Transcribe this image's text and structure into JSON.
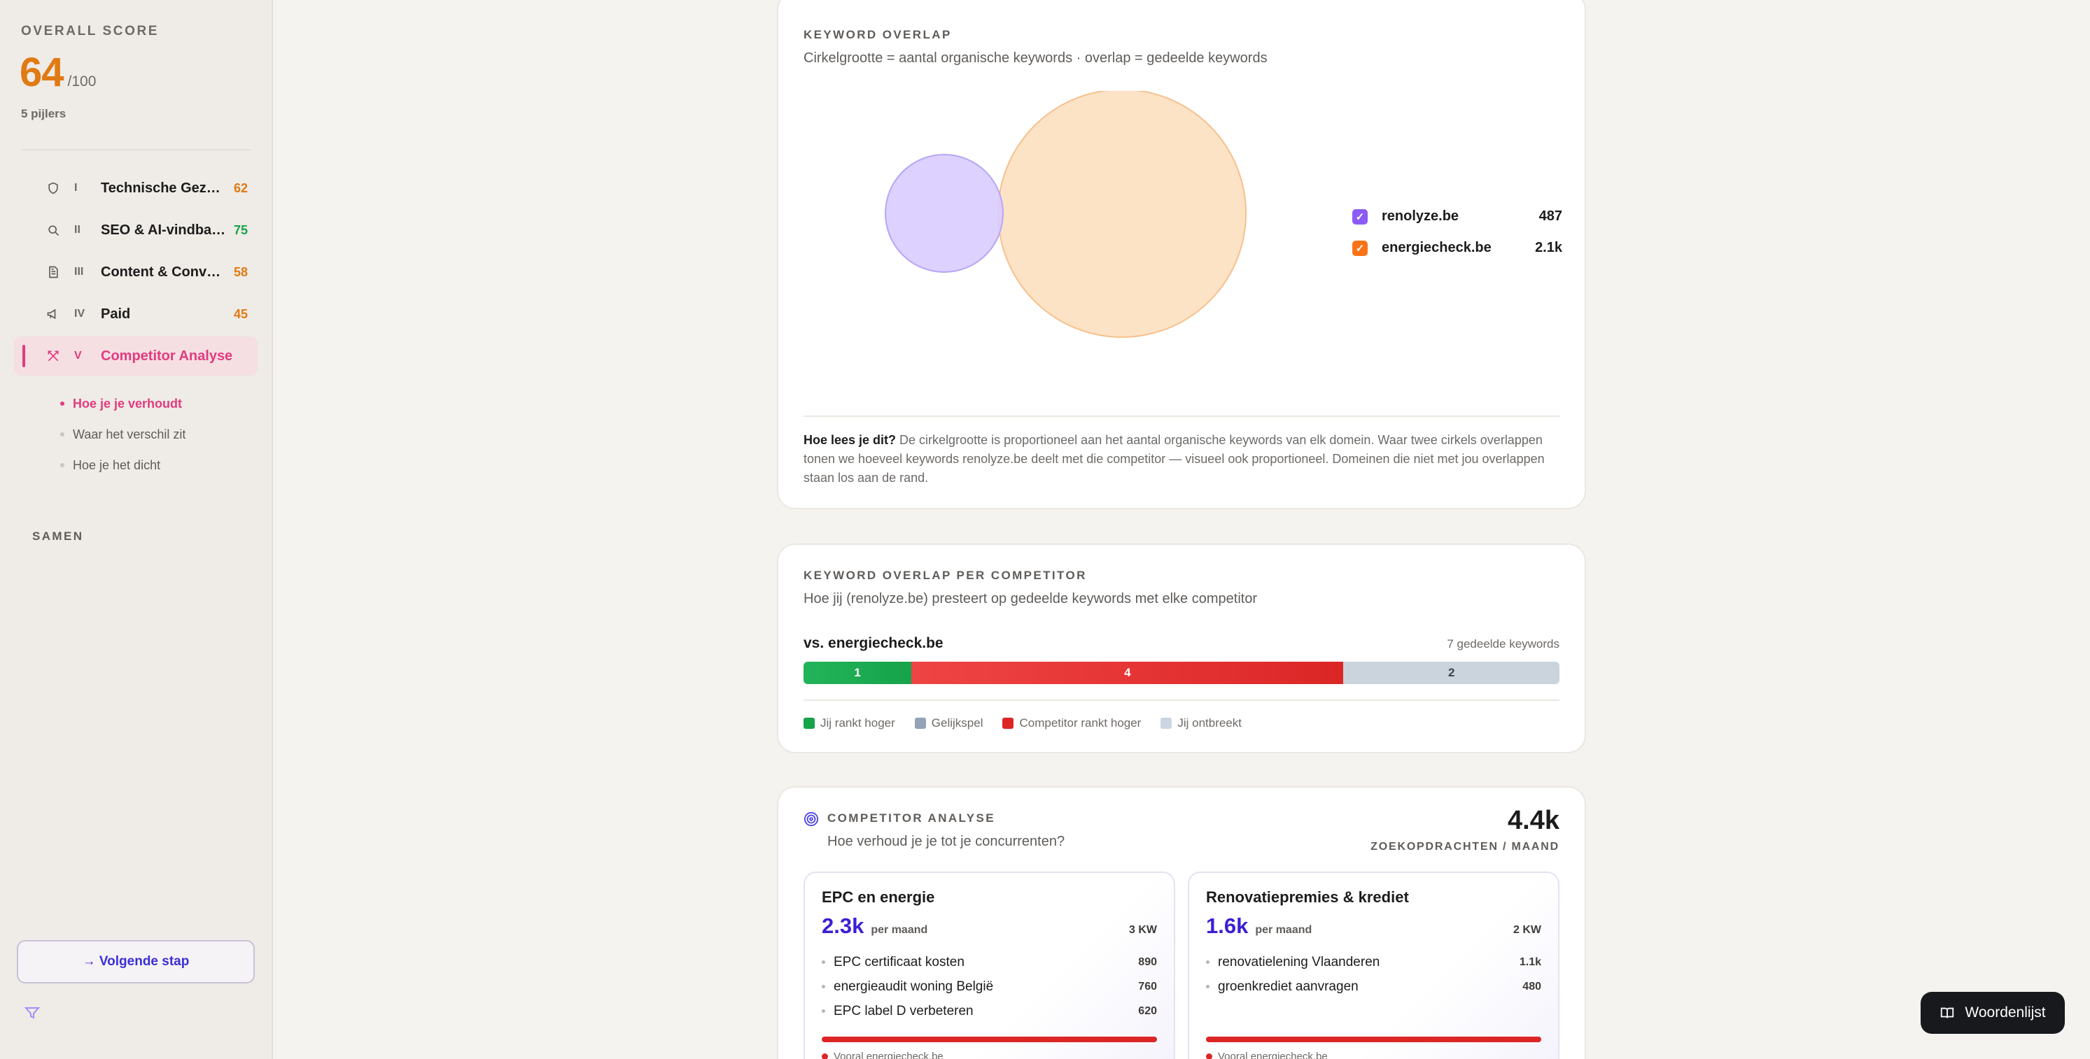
{
  "sidebar": {
    "score_label": "OVERALL SCORE",
    "score_value": "64",
    "score_max": "/100",
    "pillars": "5 pijlers",
    "items": [
      {
        "icon": "shield-icon",
        "numeral": "I",
        "label": "Technische Gezondheid",
        "score": "62",
        "color": "#e07a14"
      },
      {
        "icon": "search-icon",
        "numeral": "II",
        "label": "SEO & AI-vindbaarheid",
        "score": "75",
        "color": "#16a34a"
      },
      {
        "icon": "document-icon",
        "numeral": "III",
        "label": "Content & Conversie",
        "score": "58",
        "color": "#e07a14"
      },
      {
        "icon": "megaphone-icon",
        "numeral": "IV",
        "label": "Paid",
        "score": "45",
        "color": "#e07a14"
      },
      {
        "icon": "crossed-swords-icon",
        "numeral": "V",
        "label": "Competitor Analyse",
        "score": ""
      }
    ],
    "subitems": [
      "Hoe je je verhoudt",
      "Waar het verschil zit",
      "Hoe je het dicht"
    ],
    "samen": "SAMEN",
    "next_step": "→ Volgende stap"
  },
  "overlap": {
    "title": "KEYWORD OVERLAP",
    "subtitle": "Cirkelgrootte = aantal organische keywords · overlap = gedeelde keywords",
    "domains": [
      {
        "name": "renolyze.be",
        "value": "487",
        "keywords": 487,
        "color": "#8b5cf6"
      },
      {
        "name": "energiecheck.be",
        "value": "2.1k",
        "keywords": 2100,
        "color": "#f97316"
      }
    ],
    "shared_keywords": 7,
    "explain_bold": "Hoe lees je dit?",
    "explain_text": " De cirkelgrootte is proportioneel aan het aantal organische keywords van elk domein. Waar twee cirkels overlappen tonen we hoeveel keywords renolyze.be deelt met die competitor — visueel ook proportioneel. Domeinen die niet met jou overlappen staan los aan de rand."
  },
  "per_competitor": {
    "title": "KEYWORD OVERLAP PER COMPETITOR",
    "subtitle": "Hoe jij (renolyze.be) presteert op gedeelde keywords met elke competitor",
    "vs_label": "vs. energiecheck.be",
    "shared": "7 gedeelde keywords",
    "segments": {
      "win": 1,
      "tie": 0,
      "lose": 4,
      "missing": 2
    },
    "legend": [
      {
        "label": "Jij rankt hoger",
        "color": "#16a34a"
      },
      {
        "label": "Gelijkspel",
        "color": "#94a3b8"
      },
      {
        "label": "Competitor rankt hoger",
        "color": "#dc2626"
      },
      {
        "label": "Jij ontbreekt",
        "color": "#cbd5e1"
      }
    ]
  },
  "competitor": {
    "title": "COMPETITOR ANALYSE",
    "subtitle": "Hoe verhoud je je tot je concurrenten?",
    "total": "4.4k",
    "total_label": "ZOEKOPDRACHTEN / MAAND",
    "topics": [
      {
        "title": "EPC en energie",
        "volume": "2.3k",
        "unit": "per maand",
        "kw": "3 KW",
        "keywords": [
          {
            "name": "EPC certificaat kosten",
            "value": "890"
          },
          {
            "name": "energieaudit woning België",
            "value": "760"
          },
          {
            "name": "EPC label D verbeteren",
            "value": "620"
          }
        ],
        "note": "Vooral energiecheck.be"
      },
      {
        "title": "Renovatiepremies & krediet",
        "volume": "1.6k",
        "unit": "per maand",
        "kw": "2 KW",
        "keywords": [
          {
            "name": "renovatielening Vlaanderen",
            "value": "1.1k"
          },
          {
            "name": "groenkrediet aanvragen",
            "value": "480"
          }
        ],
        "note": "Vooral energiecheck.be"
      }
    ]
  },
  "glossary": "Woordenlijst"
}
